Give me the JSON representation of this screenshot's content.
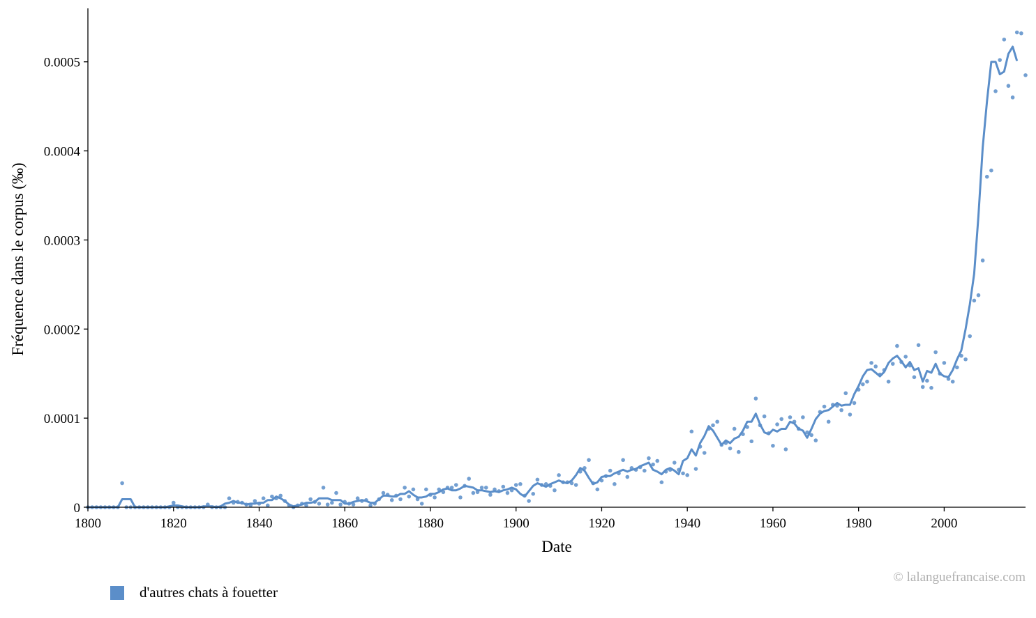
{
  "colors": {
    "series": "#5b8ec9",
    "axis": "#000000",
    "copyright": "#b0b0b0"
  },
  "copyright": "© lalanguefrancaise.com",
  "chart_data": {
    "type": "line",
    "title": "",
    "xlabel": "Date",
    "ylabel": "Fréquence dans le corpus (‰)",
    "xlim": [
      1800,
      2019
    ],
    "ylim": [
      0,
      0.00056
    ],
    "x_ticks": [
      1800,
      1820,
      1840,
      1860,
      1880,
      1900,
      1920,
      1940,
      1960,
      1980,
      2000
    ],
    "x_tick_labels": [
      "1800",
      "1820",
      "1840",
      "1860",
      "1880",
      "1900",
      "1920",
      "1940",
      "1960",
      "1980",
      "2000"
    ],
    "y_ticks": [
      0,
      0.0001,
      0.0002,
      0.0003,
      0.0004,
      0.0005
    ],
    "y_tick_labels": [
      "0",
      "0.0001",
      "0.0002",
      "0.0003",
      "0.0004",
      "0.0005"
    ],
    "grid": false,
    "legend": "bottom-left",
    "series": [
      {
        "name": "d'autres chats à fouetter",
        "x_start": 1800,
        "x_step": 1,
        "raw": [
          0,
          0,
          0,
          0,
          0,
          0,
          0,
          0,
          2.7e-05,
          0,
          0,
          0,
          0,
          0,
          0,
          0,
          0,
          0,
          0,
          0,
          5e-06,
          0,
          0,
          0,
          0,
          0,
          0,
          0,
          3e-06,
          0,
          0,
          0,
          0,
          1e-05,
          5e-06,
          6e-06,
          5e-06,
          3e-06,
          2e-06,
          7e-06,
          4e-06,
          1e-05,
          2e-06,
          1.2e-05,
          1e-05,
          1.3e-05,
          7e-06,
          2e-06,
          0,
          2e-06,
          4e-06,
          2e-06,
          9e-06,
          6e-06,
          4e-06,
          2.2e-05,
          3e-06,
          5e-06,
          1.6e-05,
          3e-06,
          6e-06,
          4e-06,
          3e-06,
          1e-05,
          7e-06,
          8e-06,
          2e-06,
          4e-06,
          9e-06,
          1.6e-05,
          1.4e-05,
          8e-06,
          1.3e-05,
          9e-06,
          2.2e-05,
          1.2e-05,
          2e-05,
          9e-06,
          4e-06,
          2e-05,
          1.4e-05,
          1.1e-05,
          2e-05,
          1.7e-05,
          2.2e-05,
          2.2e-05,
          2.5e-05,
          1.1e-05,
          2.4e-05,
          3.2e-05,
          1.6e-05,
          1.7e-05,
          2.2e-05,
          2.2e-05,
          1.4e-05,
          2e-05,
          1.8e-05,
          2.3e-05,
          1.6e-05,
          1.9e-05,
          2.5e-05,
          2.6e-05,
          1.3e-05,
          7e-06,
          1.5e-05,
          3.1e-05,
          2.5e-05,
          2.6e-05,
          2.4e-05,
          1.9e-05,
          3.6e-05,
          2.8e-05,
          2.8e-05,
          2.7e-05,
          2.5e-05,
          4e-05,
          4.4e-05,
          5.3e-05,
          2.7e-05,
          2e-05,
          3e-05,
          3.5e-05,
          4.1e-05,
          2.6e-05,
          3.8e-05,
          5.3e-05,
          3.4e-05,
          4.4e-05,
          4.2e-05,
          4.5e-05,
          4.1e-05,
          5.5e-05,
          4.8e-05,
          5.2e-05,
          2.8e-05,
          4e-05,
          4.2e-05,
          5e-05,
          4.2e-05,
          3.8e-05,
          3.6e-05,
          8.5e-05,
          4.3e-05,
          6.8e-05,
          6.1e-05,
          8.8e-05,
          9.2e-05,
          9.6e-05,
          7e-05,
          7.2e-05,
          6.6e-05,
          8.8e-05,
          6.2e-05,
          8.2e-05,
          9e-05,
          7.4e-05,
          0.000122,
          9.2e-05,
          0.000102,
          8.3e-05,
          6.9e-05,
          9.3e-05,
          9.9e-05,
          6.5e-05,
          0.000101,
          9.6e-05,
          8.8e-05,
          0.000101,
          8.4e-05,
          8.1e-05,
          7.5e-05,
          0.000107,
          0.000113,
          9.6e-05,
          0.000115,
          0.000114,
          0.000109,
          0.000128,
          0.000104,
          0.000117,
          0.000132,
          0.000138,
          0.000141,
          0.000162,
          0.000158,
          0.000149,
          0.000154,
          0.000141,
          0.000161,
          0.000181,
          0.000163,
          0.000169,
          0.000159,
          0.000146,
          0.000182,
          0.000135,
          0.000142,
          0.000134,
          0.000174,
          0.00015,
          0.000162,
          0.000144,
          0.000141,
          0.000157,
          0.00017,
          0.000166,
          0.000192,
          0.000232,
          0.000238,
          0.000277,
          0.000371,
          0.000378,
          0.000467,
          0.000502,
          0.000525,
          0.000473,
          0.00046,
          0.000533,
          0.000532,
          0.000485
        ],
        "smoothed": [
          0,
          0,
          0,
          0,
          0,
          0,
          0,
          0,
          9e-06,
          9e-06,
          9e-06,
          0,
          0,
          0,
          0,
          0,
          0,
          0,
          0,
          1e-06,
          2e-06,
          2e-06,
          1e-06,
          0,
          0,
          0,
          0,
          1e-06,
          1e-06,
          1e-06,
          0,
          1e-06,
          4e-06,
          5e-06,
          7e-06,
          5e-06,
          5e-06,
          3e-06,
          4e-06,
          4e-06,
          5e-06,
          5e-06,
          8e-06,
          8e-06,
          1.2e-05,
          1e-05,
          7e-06,
          3e-06,
          1e-06,
          2e-06,
          3e-06,
          5e-06,
          5e-06,
          6e-06,
          1e-05,
          1e-05,
          1e-05,
          8e-06,
          8e-06,
          8e-06,
          4e-06,
          4e-06,
          6e-06,
          7e-06,
          8e-06,
          7e-06,
          5e-06,
          5e-06,
          9e-06,
          1.3e-05,
          1.3e-05,
          1.2e-05,
          1.2e-05,
          1.5e-05,
          1.5e-05,
          1.8e-05,
          1.4e-05,
          1.1e-05,
          1.1e-05,
          1.2e-05,
          1.5e-05,
          1.5e-05,
          1.7e-05,
          2e-05,
          2.1e-05,
          1.9e-05,
          1.9e-05,
          2.1e-05,
          2.4e-05,
          2.3e-05,
          2.2e-05,
          1.9e-05,
          1.9e-05,
          1.8e-05,
          1.7e-05,
          1.8e-05,
          1.7e-05,
          1.9e-05,
          2e-05,
          2.2e-05,
          2e-05,
          1.5e-05,
          1.2e-05,
          1.8e-05,
          2.4e-05,
          2.7e-05,
          2.5e-05,
          2.3e-05,
          2.6e-05,
          2.8e-05,
          3e-05,
          2.8e-05,
          2.7e-05,
          3e-05,
          3.6e-05,
          4.4e-05,
          4.1e-05,
          3.3e-05,
          2.6e-05,
          2.8e-05,
          3.4e-05,
          3.5e-05,
          3.5e-05,
          3.8e-05,
          4e-05,
          4.2e-05,
          4e-05,
          4.2e-05,
          4.3e-05,
          4.6e-05,
          4.8e-05,
          5e-05,
          4.2e-05,
          4e-05,
          3.7e-05,
          4.2e-05,
          4.4e-05,
          4.1e-05,
          3.7e-05,
          5.2e-05,
          5.5e-05,
          6.5e-05,
          5.8e-05,
          7.2e-05,
          8e-05,
          9.1e-05,
          8.6e-05,
          7.8e-05,
          7e-05,
          7.5e-05,
          7.2e-05,
          7.7e-05,
          7.9e-05,
          8.6e-05,
          9.6e-05,
          9.6e-05,
          0.000105,
          9.3e-05,
          8.4e-05,
          8.2e-05,
          8.7e-05,
          8.5e-05,
          8.8e-05,
          8.8e-05,
          9.6e-05,
          9.4e-05,
          8.8e-05,
          8.6e-05,
          7.8e-05,
          8.8e-05,
          9.9e-05,
          0.000105,
          0.000108,
          0.000109,
          0.000113,
          0.000117,
          0.000114,
          0.000115,
          0.000115,
          0.000127,
          0.000136,
          0.000147,
          0.000154,
          0.000155,
          0.000151,
          0.000147,
          0.000152,
          0.000162,
          0.000167,
          0.00017,
          0.000164,
          0.000157,
          0.000163,
          0.000154,
          0.000156,
          0.000141,
          0.000153,
          0.000151,
          0.000161,
          0.00015,
          0.000147,
          0.000146,
          0.000154,
          0.000166,
          0.000176,
          0.0002,
          0.000228,
          0.000262,
          0.000327,
          0.000404,
          0.000456,
          0.0005,
          0.0005,
          0.000486,
          0.000489,
          0.000509,
          0.000517,
          0.000501
        ]
      }
    ]
  }
}
